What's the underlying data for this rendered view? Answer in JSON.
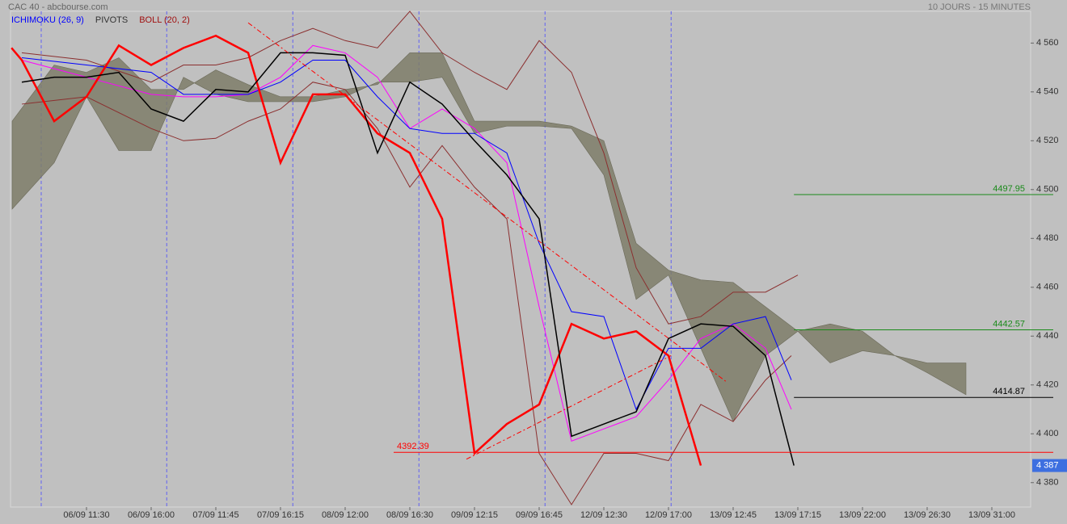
{
  "chart_data": {
    "type": "line",
    "title": "CAC 40 - abcbourse.com",
    "subtitle": "10 JOURS - 15 MINUTES",
    "indicators": [
      {
        "name": "ICHIMOKU (26, 9)",
        "color": "#0000ff"
      },
      {
        "name": "PIVOTS",
        "color": "#333333"
      },
      {
        "name": "BOLL (20, 2)",
        "color": "#a01010"
      }
    ],
    "xlim": [
      -1.175,
      14.6
    ],
    "xticks": [
      {
        "value": 0,
        "label": "06/09 11:30"
      },
      {
        "value": 1,
        "label": "06/09 16:00"
      },
      {
        "value": 2,
        "label": "07/09 11:45"
      },
      {
        "value": 3,
        "label": "07/09 16:15"
      },
      {
        "value": 4,
        "label": "08/09 12:00"
      },
      {
        "value": 5,
        "label": "08/09 16:30"
      },
      {
        "value": 6,
        "label": "09/09 12:15"
      },
      {
        "value": 7,
        "label": "09/09 16:45"
      },
      {
        "value": 8,
        "label": "12/09 12:30"
      },
      {
        "value": 9,
        "label": "12/09 17:00"
      },
      {
        "value": 10,
        "label": "13/09 12:45"
      },
      {
        "value": 11,
        "label": "13/09 17:15"
      },
      {
        "value": 12,
        "label": "13/09 22:00"
      },
      {
        "value": 13,
        "label": "13/09 26:30"
      },
      {
        "value": 14,
        "label": "13/09 31:00"
      }
    ],
    "ylim": [
      4370,
      4573
    ],
    "yticks": [
      {
        "value": 4380,
        "label": "4 380"
      },
      {
        "value": 4400,
        "label": "4 400"
      },
      {
        "value": 4420,
        "label": "4 420"
      },
      {
        "value": 4440,
        "label": "4 440"
      },
      {
        "value": 4460,
        "label": "4 460"
      },
      {
        "value": 4480,
        "label": "4 480"
      },
      {
        "value": 4500,
        "label": "4 500"
      },
      {
        "value": 4520,
        "label": "4 520"
      },
      {
        "value": 4540,
        "label": "4 540"
      },
      {
        "value": 4560,
        "label": "4 560"
      }
    ],
    "sessions": [
      -0.7,
      1.24,
      3.19,
      5.14,
      7.09,
      9.04
    ],
    "cloud": {
      "color": "#7e7d68",
      "x": [
        -1.15,
        -0.5,
        0,
        0.5,
        1,
        1.5,
        2,
        2.5,
        3,
        3.5,
        4,
        4.5,
        5,
        5.5,
        6,
        6.5,
        7,
        7.5,
        8,
        8.5,
        9,
        9.5,
        10,
        10.5,
        11,
        11.5,
        12,
        12.5,
        13,
        13.6
      ],
      "span_a": [
        4528,
        4551,
        4548,
        4554,
        4541,
        4541,
        4549,
        4543,
        4538,
        4538,
        4541,
        4543,
        4556,
        4556,
        4528,
        4528,
        4528,
        4526,
        4520,
        4478,
        4467,
        4463,
        4462,
        4452,
        4442,
        4445,
        4442,
        4432,
        4429,
        4429
      ],
      "span_b": [
        4492,
        4511,
        4538,
        4516,
        4516,
        4546,
        4539,
        4536,
        4536,
        4536,
        4538,
        4544,
        4544,
        4546,
        4523,
        4526,
        4526,
        4525,
        4506,
        4455,
        4465,
        4435,
        4405,
        4432,
        4442,
        4429,
        4434,
        4432,
        4425,
        4416
      ]
    },
    "series": [
      {
        "color": "#8b2f2f",
        "width": 1,
        "x": [
          -1,
          0,
          1,
          1.5,
          2,
          2.5,
          3,
          3.5,
          4,
          4.5,
          5,
          5.5,
          6,
          6.5,
          7,
          7.5,
          8,
          8.5,
          9,
          9.5,
          10,
          10.5,
          11
        ],
        "values": [
          4556,
          4553,
          4544,
          4551,
          4551,
          4554,
          4561,
          4566,
          4561,
          4558,
          4573,
          4556,
          4548,
          4541,
          4561,
          4548,
          4515,
          4468,
          4445,
          4448,
          4458,
          4458,
          4465
        ]
      },
      {
        "color": "#8b2f2f",
        "width": 1,
        "x": [
          -1,
          0,
          1,
          1.5,
          2,
          2.5,
          3,
          3.5,
          4,
          4.5,
          5,
          5.5,
          6,
          6.5,
          7,
          7.5,
          8,
          8.5,
          9,
          9.5,
          10,
          10.5,
          10.9
        ],
        "values": [
          4535,
          4538,
          4525,
          4520,
          4521,
          4528,
          4533,
          4544,
          4541,
          4525,
          4501,
          4518,
          4501,
          4488,
          4392,
          4371,
          4392,
          4392,
          4389,
          4412,
          4405,
          4422,
          4432
        ]
      },
      {
        "color": "#ff00ff",
        "width": 1,
        "x": [
          -1,
          0,
          1,
          1.5,
          2,
          2.5,
          3,
          3.5,
          4,
          4.5,
          5,
          5.5,
          6,
          6.5,
          7,
          7.5,
          8,
          8.5,
          9,
          9.5,
          10,
          10.5,
          10.9
        ],
        "values": [
          4553,
          4546,
          4539,
          4538,
          4538,
          4539,
          4546,
          4559,
          4556,
          4546,
          4525,
          4533,
          4525,
          4511,
          4452,
          4397,
          4402,
          4407,
          4422,
          4439,
          4445,
          4435,
          4410
        ]
      },
      {
        "color": "#0000ff",
        "width": 1,
        "x": [
          -1,
          0,
          1,
          1.5,
          2,
          2.5,
          3,
          3.5,
          4,
          4.5,
          5,
          5.5,
          6,
          6.5,
          7,
          7.5,
          8,
          8.5,
          9,
          9.5,
          10,
          10.5,
          10.9
        ],
        "values": [
          4554,
          4551,
          4548,
          4539,
          4539,
          4539,
          4544,
          4553,
          4553,
          4538,
          4525,
          4523,
          4523,
          4515,
          4478,
          4450,
          4448,
          4410,
          4435,
          4435,
          4445,
          4448,
          4422
        ]
      },
      {
        "color": "#ff0000",
        "width": 2.5,
        "x": [
          -1.16,
          -1,
          -0.5,
          0,
          0.5,
          1,
          1.5,
          2,
          2.5,
          3,
          3.5,
          4,
          4.5,
          5,
          5.5,
          6,
          6.5,
          7,
          7.5,
          8,
          8.5,
          9,
          9.5
        ],
        "values": [
          4558,
          4553,
          4528,
          4538,
          4559,
          4551,
          4558,
          4563,
          4556,
          4511,
          4539,
          4539,
          4523,
          4515,
          4488,
          4392,
          4404,
          4412,
          4445,
          4439,
          4442,
          4432,
          4387
        ]
      },
      {
        "color": "#000000",
        "width": 1.5,
        "x": [
          -1,
          -0.5,
          0,
          0.5,
          1,
          1.5,
          2,
          2.5,
          3,
          3.5,
          4,
          4.5,
          5,
          5.5,
          6,
          6.5,
          7,
          7.5,
          8,
          8.5,
          9,
          9.5,
          10,
          10.5,
          10.94
        ],
        "values": [
          4544,
          4546,
          4546,
          4548,
          4533,
          4528,
          4541,
          4540,
          4556,
          4556,
          4555,
          4515,
          4544,
          4535,
          4520,
          4506,
          4488,
          4399,
          4404,
          4409,
          4439,
          4445,
          4444,
          4432,
          4387
        ]
      }
    ],
    "trendlines": [
      {
        "color": "#ff0000",
        "x": [
          2.5,
          9.91
        ],
        "values": [
          4568.3,
          4421
        ]
      },
      {
        "color": "#ff0000",
        "x": [
          5.875,
          9.04
        ],
        "values": [
          4389.6,
          4432
        ]
      }
    ],
    "levels": [
      {
        "value": 4497.95,
        "color": "#1a8a1a",
        "x_start": 10.94
      },
      {
        "value": 4442.57,
        "color": "#1a8a1a",
        "x_start": 10.94
      },
      {
        "value": 4414.87,
        "color": "#000000",
        "x_start": 10.94
      },
      {
        "value": 4392.39,
        "color": "#ff0000",
        "x_start": 4.75
      }
    ],
    "last_price": {
      "value": 4387,
      "label": "4 387",
      "color": "#3d6fe0"
    }
  }
}
